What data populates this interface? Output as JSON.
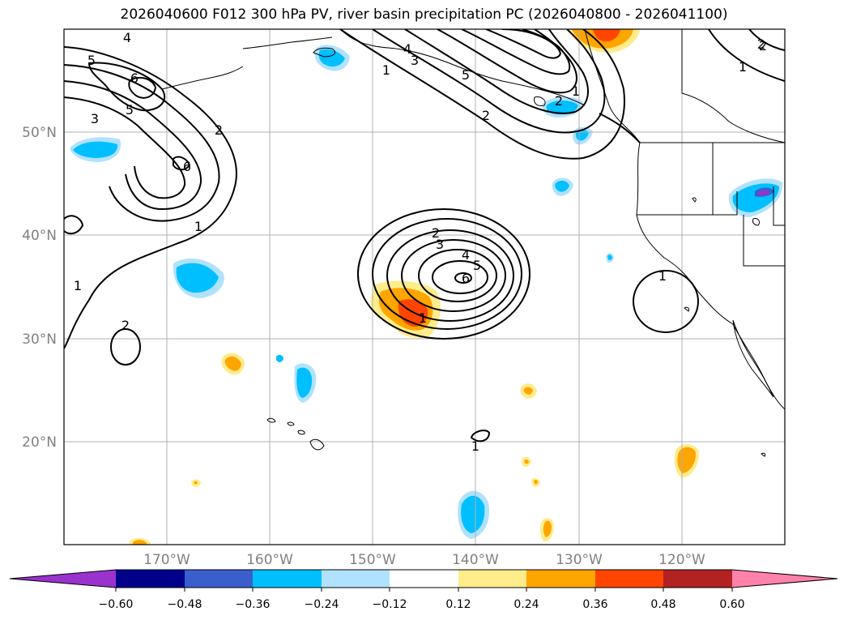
{
  "title": "2026040600 F012 300 hPa PV, river basin precipitation PC (2026040800 - 2026041100)",
  "lat_labels": [
    "50°N",
    "40°N",
    "30°N",
    "20°N"
  ],
  "lat_values": [
    50,
    40,
    30,
    20
  ],
  "lon_labels": [
    "170°W",
    "160°W",
    "150°W",
    "140°W",
    "130°W",
    "120°W"
  ],
  "lon_values": [
    -170,
    -160,
    -150,
    -140,
    -130,
    -120
  ],
  "map_extent": {
    "lon": [
      -180,
      -110
    ],
    "lat": [
      10,
      60
    ]
  },
  "colorbar": {
    "ticks": [
      "−0.60",
      "−0.48",
      "−0.36",
      "−0.24",
      "−0.12",
      "0.12",
      "0.24",
      "0.36",
      "0.48",
      "0.60"
    ],
    "colors": [
      "#9a32cd",
      "#00008b",
      "#3a5fcd",
      "#00bfff",
      "#b0e2ff",
      "#ffffff",
      "#ffec8b",
      "#ffa500",
      "#ff4500",
      "#b22222",
      "#ff82ab"
    ]
  },
  "contour_labels": [
    "4",
    "5",
    "6",
    "6",
    "5",
    "3",
    "2",
    "1",
    "1",
    "2",
    "4",
    "3",
    "1",
    "5",
    "2",
    "1",
    "2",
    "2",
    "3",
    "4",
    "5",
    "6",
    "1",
    "1",
    "2",
    "1",
    "1",
    "2"
  ],
  "colors": {
    "contour": "#000000",
    "grid": "#b0b0b0",
    "coast": "#000000"
  }
}
